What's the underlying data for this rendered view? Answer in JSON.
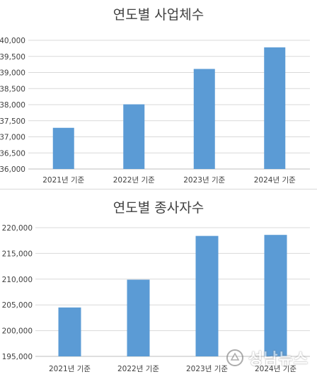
{
  "watermark": {
    "text": "성남뉴스",
    "icon": "logo-icon"
  },
  "chart_data": [
    {
      "type": "bar",
      "title": "연도별 사업체수",
      "categories": [
        "2021년 기준",
        "2022년 기준",
        "2023년 기준",
        "2024년 기준"
      ],
      "values": [
        37280,
        38010,
        39110,
        39780
      ],
      "ylim": [
        36000,
        40000
      ],
      "yticks": [
        36000,
        36500,
        37000,
        37500,
        38000,
        38500,
        39000,
        39500,
        40000
      ],
      "ytick_labels": [
        "36,000",
        "36,500",
        "37,000",
        "37,500",
        "38,000",
        "38,500",
        "39,000",
        "39,500",
        "40,000"
      ],
      "grid": true,
      "color": "#5b9bd5"
    },
    {
      "type": "bar",
      "title": "연도별 종사자수",
      "categories": [
        "2021년 기준",
        "2022년 기준",
        "2023년 기준",
        "2024년 기준"
      ],
      "values": [
        204500,
        209900,
        218400,
        218600
      ],
      "ylim": [
        195000,
        220000
      ],
      "yticks": [
        195000,
        200000,
        205000,
        210000,
        215000,
        220000
      ],
      "ytick_labels": [
        "195,000",
        "200,000",
        "205,000",
        "210,000",
        "215,000",
        "220,000"
      ],
      "grid": true,
      "color": "#5b9bd5"
    }
  ]
}
